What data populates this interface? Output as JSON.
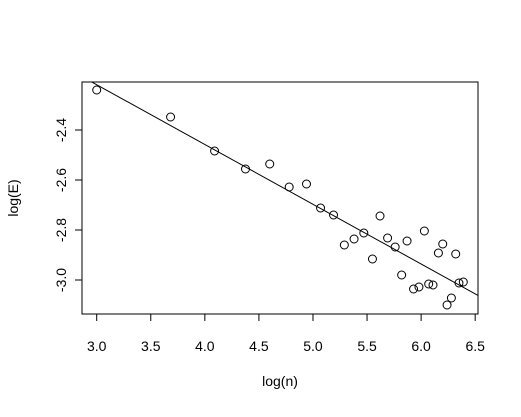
{
  "chart_data": {
    "type": "scatter",
    "x_label": "log(n)",
    "y_label": "log(E)",
    "x": [
      3.0,
      3.683,
      4.09,
      4.376,
      4.6,
      4.78,
      4.94,
      5.07,
      5.19,
      5.29,
      5.38,
      5.47,
      5.55,
      5.62,
      5.69,
      5.76,
      5.82,
      5.87,
      5.93,
      5.98,
      6.03,
      6.07,
      6.11,
      6.16,
      6.2,
      6.24,
      6.28,
      6.32,
      6.35,
      6.39
    ],
    "values": [
      -2.24,
      -2.348,
      -2.484,
      -2.556,
      -2.536,
      -2.628,
      -2.616,
      -2.712,
      -2.74,
      -2.86,
      -2.836,
      -2.812,
      -2.916,
      -2.744,
      -2.832,
      -2.868,
      -2.98,
      -2.844,
      -3.036,
      -3.028,
      -2.804,
      -3.016,
      -3.02,
      -2.892,
      -2.856,
      -3.1,
      -3.072,
      -2.896,
      -3.012,
      -3.008
    ],
    "color": "#000000",
    "fit_line": {
      "intercept": -1.502,
      "slope": -0.239
    },
    "xlim": [
      2.864,
      6.526
    ],
    "ylim": [
      -3.136,
      -2.208
    ],
    "xticks": [
      {
        "value": 3.0,
        "label": "3.0"
      },
      3.5,
      {
        "value": 4.0,
        "label": "4.0"
      },
      4.5,
      {
        "value": 5.0,
        "label": "5.0"
      },
      5.5,
      {
        "value": 6.0,
        "label": "6.0"
      },
      6.5
    ],
    "yticks": [
      -2.4,
      -2.6,
      -2.8,
      {
        "value": -3.0,
        "label": "-3.0"
      }
    ]
  }
}
